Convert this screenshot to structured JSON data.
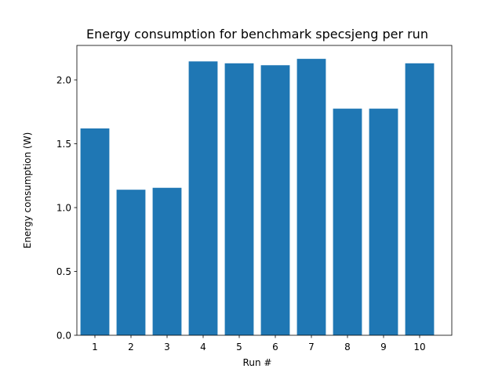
{
  "chart_data": {
    "type": "bar",
    "title": "Energy consumption for benchmark specsjeng per run",
    "xlabel": "Run #",
    "ylabel": "Energy consumption (W)",
    "categories": [
      "1",
      "2",
      "3",
      "4",
      "5",
      "6",
      "7",
      "8",
      "9",
      "10"
    ],
    "values": [
      1.62,
      1.14,
      1.155,
      2.145,
      2.13,
      2.115,
      2.165,
      1.775,
      1.775,
      2.13
    ],
    "ylim": [
      0,
      2.27
    ],
    "yticks": [
      0.0,
      0.5,
      1.0,
      1.5,
      2.0
    ],
    "ytick_labels": [
      "0.0",
      "0.5",
      "1.0",
      "1.5",
      "2.0"
    ],
    "grid": false,
    "bar_color": "#1f77b4"
  }
}
